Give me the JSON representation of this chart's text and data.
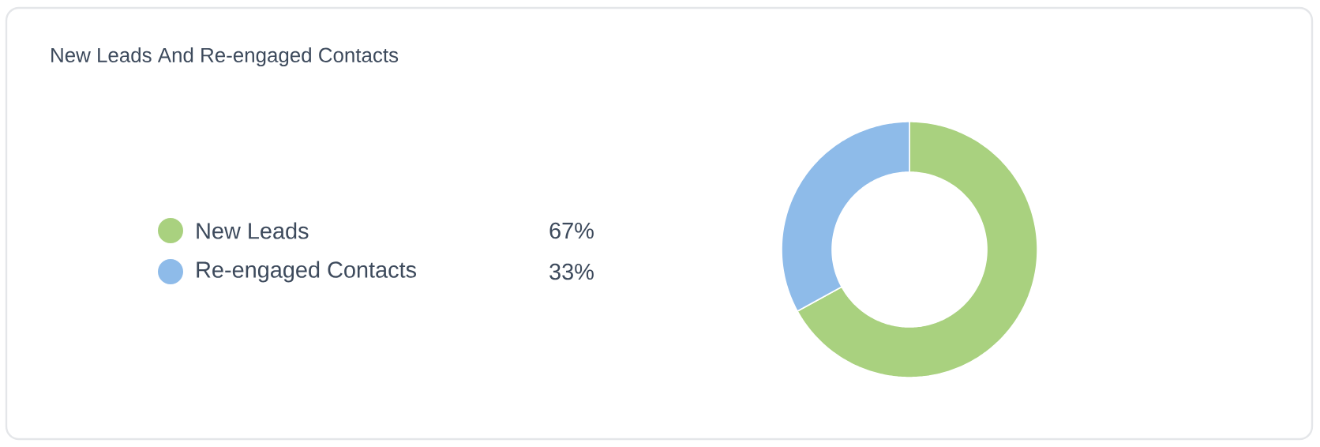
{
  "chart_data": {
    "type": "donut",
    "title": "New Leads And Re-engaged Contacts",
    "categories": [
      "New Leads",
      "Re-engaged Contacts"
    ],
    "values": [
      67,
      33
    ],
    "colors": [
      "#a9d17f",
      "#8ebbe9"
    ],
    "value_labels": [
      "67%",
      "33%"
    ],
    "legend": "left"
  }
}
